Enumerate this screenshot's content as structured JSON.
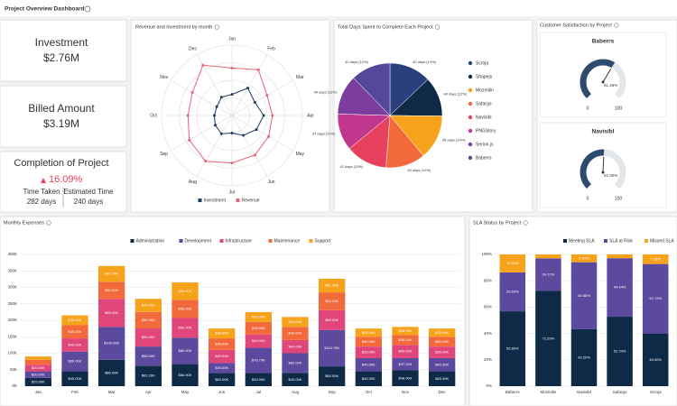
{
  "title": "Project Overview Dashboard",
  "kpis": [
    {
      "label": "Investment",
      "value": "$2.76M"
    },
    {
      "label": "Billed Amount",
      "value": "$3.19M"
    }
  ],
  "completion": {
    "label": "Completion of Project",
    "value": "16.09%",
    "time_taken_label": "Time Taken",
    "time_taken": "282 days",
    "estimated_label": "Estimated Time",
    "estimated": "240 days"
  },
  "chart_data": [
    {
      "type": "radar",
      "title": "Revenue and Investment by month",
      "categories": [
        "Jan",
        "Feb",
        "Mar",
        "Apr",
        "May",
        "Jun",
        "Jul",
        "Aug",
        "Sep",
        "Oct",
        "Nov",
        "Dec"
      ],
      "rlim": [
        0,
        400
      ],
      "rticks": [
        100,
        200,
        300,
        400
      ],
      "series": [
        {
          "name": "Investment",
          "color": "#1f3a5f",
          "values": [
            120,
            180,
            150,
            180,
            160,
            130,
            100,
            120,
            110,
            100,
            100,
            120
          ]
        },
        {
          "name": "Revenue",
          "color": "#e8627a",
          "values": [
            270,
            300,
            230,
            230,
            240,
            260,
            270,
            300,
            280,
            250,
            260,
            330
          ]
        }
      ]
    },
    {
      "type": "pie",
      "title": "Total Days Spent to Complete Each Project",
      "categories": [
        "Scroja",
        "Shapejs",
        "Mozmilin",
        "Safargo",
        "Navisibl",
        "PNGStory",
        "Serion.js",
        "Baberrs"
      ],
      "values": [
        42,
        40,
        45,
        40,
        42,
        37,
        40,
        40
      ],
      "value_labels": [
        "42 days (13%)",
        "40 days (12%)",
        "45 days (14%)",
        "40 days (12%)",
        "42 days (13%)",
        "37 days (11%)",
        "40 days (12%)",
        "40 days (12%)"
      ],
      "colors": [
        "#2b3f7e",
        "#0e2a47",
        "#f7a21b",
        "#f26a3c",
        "#e8415f",
        "#c2378e",
        "#7b3e9e",
        "#55479a"
      ]
    },
    {
      "type": "gauge",
      "title": "Customer Satisfaction by Project",
      "categories": [
        "Baberrs",
        "Navisibl"
      ],
      "values": [
        61.46,
        51
      ],
      "value_labels": [
        "61.46%",
        "51.00%"
      ],
      "ylim": [
        0,
        100
      ],
      "yticks": [
        0,
        100
      ],
      "color": "#2e4a6e"
    },
    {
      "type": "stacked_bar",
      "title": "Monthly Expenses",
      "categories": [
        "Jan",
        "Feb",
        "Mar",
        "Apr",
        "May",
        "Jun",
        "Jul",
        "Aug",
        "Sep",
        "Oct",
        "Nov",
        "Dec"
      ],
      "ylim": [
        0,
        400
      ],
      "yticks": [
        {
          "value": 0,
          "label": "0K"
        },
        {
          "value": 50,
          "label": "50K"
        },
        {
          "value": 100,
          "label": "100K"
        },
        {
          "value": 150,
          "label": "150K"
        },
        {
          "value": 200,
          "label": "200K"
        },
        {
          "value": 250,
          "label": "250K"
        },
        {
          "value": 300,
          "label": "300K"
        },
        {
          "value": 350,
          "label": "350K"
        },
        {
          "value": 400,
          "label": "400K"
        }
      ],
      "series": [
        {
          "name": "Administration",
          "color": "#0e2a47",
          "values": [
            25,
            45,
            80,
            62.2,
            66.9,
            40,
            40,
            40,
            60,
            45,
            48,
            45
          ],
          "value_labels": [
            "$25.00K",
            "$45.00K",
            "$80.00K",
            "$62.20K",
            "$66.90K",
            "$40.00K",
            "$40.00K",
            "$40.00K",
            "$60.00K",
            "$45.00K",
            "$48.00K",
            "$45.00K"
          ]
        },
        {
          "name": "Development",
          "color": "#5b4a9e",
          "values": [
            20,
            60,
            100,
            58,
            80,
            30,
            76.7,
            60,
            110.7,
            40,
            37,
            40
          ],
          "value_labels": [
            "$20.00K",
            "$60.00K",
            "$100.00K",
            "$58.00K",
            "$80.00K",
            "$30.00K",
            "$76.70K",
            "$60.00K",
            "$110.70K",
            "$40.00K",
            "$37.00K",
            "$40.00K"
          ]
        },
        {
          "name": "Infrastructure",
          "color": "#e0457b",
          "values": [
            20,
            40,
            85,
            55,
            60,
            40,
            40,
            40,
            60,
            35,
            40,
            35
          ],
          "value_labels": [
            "$20.00K",
            "$40.00K",
            "$85.00K",
            "$55.00K",
            "$60.00K",
            "$40.00K",
            "$40.00K",
            "$40.00K",
            "$60.00K",
            "$35.00K",
            "$40.00K",
            "$35.00K"
          ]
        },
        {
          "name": "Maintenance",
          "color": "#f26a3c",
          "values": [
            15,
            40,
            52,
            50,
            55,
            35,
            38,
            40,
            54,
            30,
            30,
            30
          ],
          "value_labels": [
            "$15.00K",
            "$40.00K",
            "$52.00K",
            "$50.00K",
            "$55.00K",
            "$35.00K",
            "$38.00K",
            "$40.00K",
            "$54.00K",
            "$30.00K",
            "$30.00K",
            "$30.00K"
          ]
        },
        {
          "name": "Support",
          "color": "#f7a21b",
          "values": [
            10,
            30,
            47.78,
            40,
            53,
            30,
            30,
            30,
            41.3,
            25,
            25,
            25
          ],
          "value_labels": [
            "$10.00K",
            "$30.00K",
            "$47.78K",
            "$40.00K",
            "$53.00K",
            "$30.00K",
            "$30.00K",
            "$30.00K",
            "$41.30K",
            "$25.00K",
            "$25.00K",
            "$25.00K"
          ]
        }
      ]
    },
    {
      "type": "stacked_bar",
      "title": "SLA Status by Project",
      "categories": [
        "Baberrs",
        "Mozmilin",
        "Navisibl",
        "Safargo",
        "Scroja"
      ],
      "ylim": [
        0,
        100
      ],
      "yticks": [
        {
          "value": 0,
          "label": "0%"
        },
        {
          "value": 20,
          "label": "20%"
        },
        {
          "value": 40,
          "label": "40%"
        },
        {
          "value": 60,
          "label": "60%"
        },
        {
          "value": 80,
          "label": "80%"
        },
        {
          "value": 100,
          "label": "100%"
        }
      ],
      "series": [
        {
          "name": "Meeting SLA",
          "color": "#0e2a47",
          "values": [
            56.8,
            72.29,
            43.2,
            52.7,
            40
          ],
          "value_labels": [
            "56.80%",
            "72.29%",
            "43.20%",
            "52.70%",
            "40.00%"
          ]
        },
        {
          "name": "SLA at Risk",
          "color": "#5b4a9e",
          "values": [
            29.6,
            24.71,
            50.86,
            44.44,
            52.72
          ],
          "value_labels": [
            "29.60%",
            "24.71%",
            "50.86%",
            "44.44%",
            "52.72%"
          ]
        },
        {
          "name": "Missed SLA",
          "color": "#f7a21b",
          "values": [
            13.6,
            3,
            5.94,
            2.86,
            7.28
          ],
          "value_labels": [
            "13.60%",
            "3.00%",
            "5.94%",
            "2.86%",
            "7.28%"
          ]
        }
      ]
    }
  ]
}
